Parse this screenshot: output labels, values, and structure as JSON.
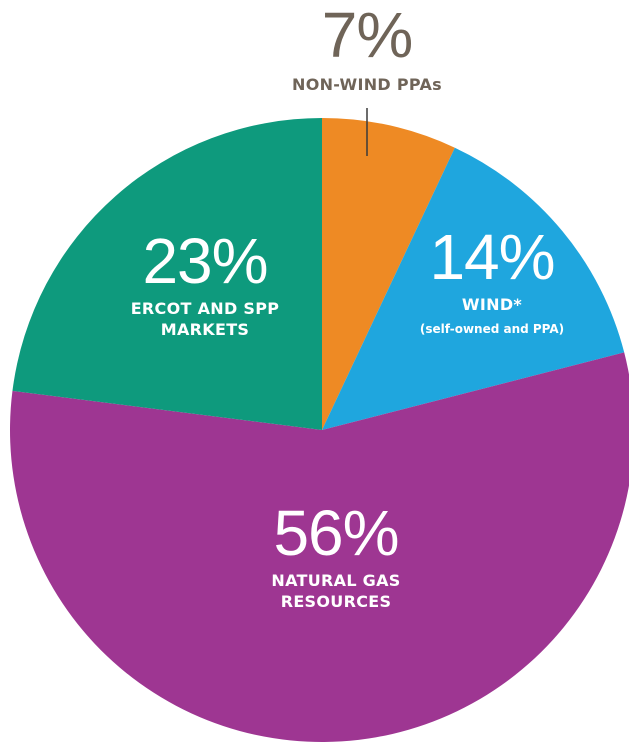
{
  "chart_data": {
    "type": "pie",
    "categories": [
      "NON-WIND PPAs",
      "WIND*",
      "NATURAL GAS RESOURCES",
      "ERCOT AND SPP MARKETS"
    ],
    "values": [
      7,
      14,
      56,
      23
    ],
    "value_labels": [
      "7%",
      "14%",
      "56%",
      "23%"
    ],
    "category_notes": [
      null,
      "(self-owned and PPA)",
      null,
      null
    ],
    "colors": [
      "#ee8a24",
      "#1fa6de",
      "#9e3692",
      "#0e9a7d"
    ]
  }
}
